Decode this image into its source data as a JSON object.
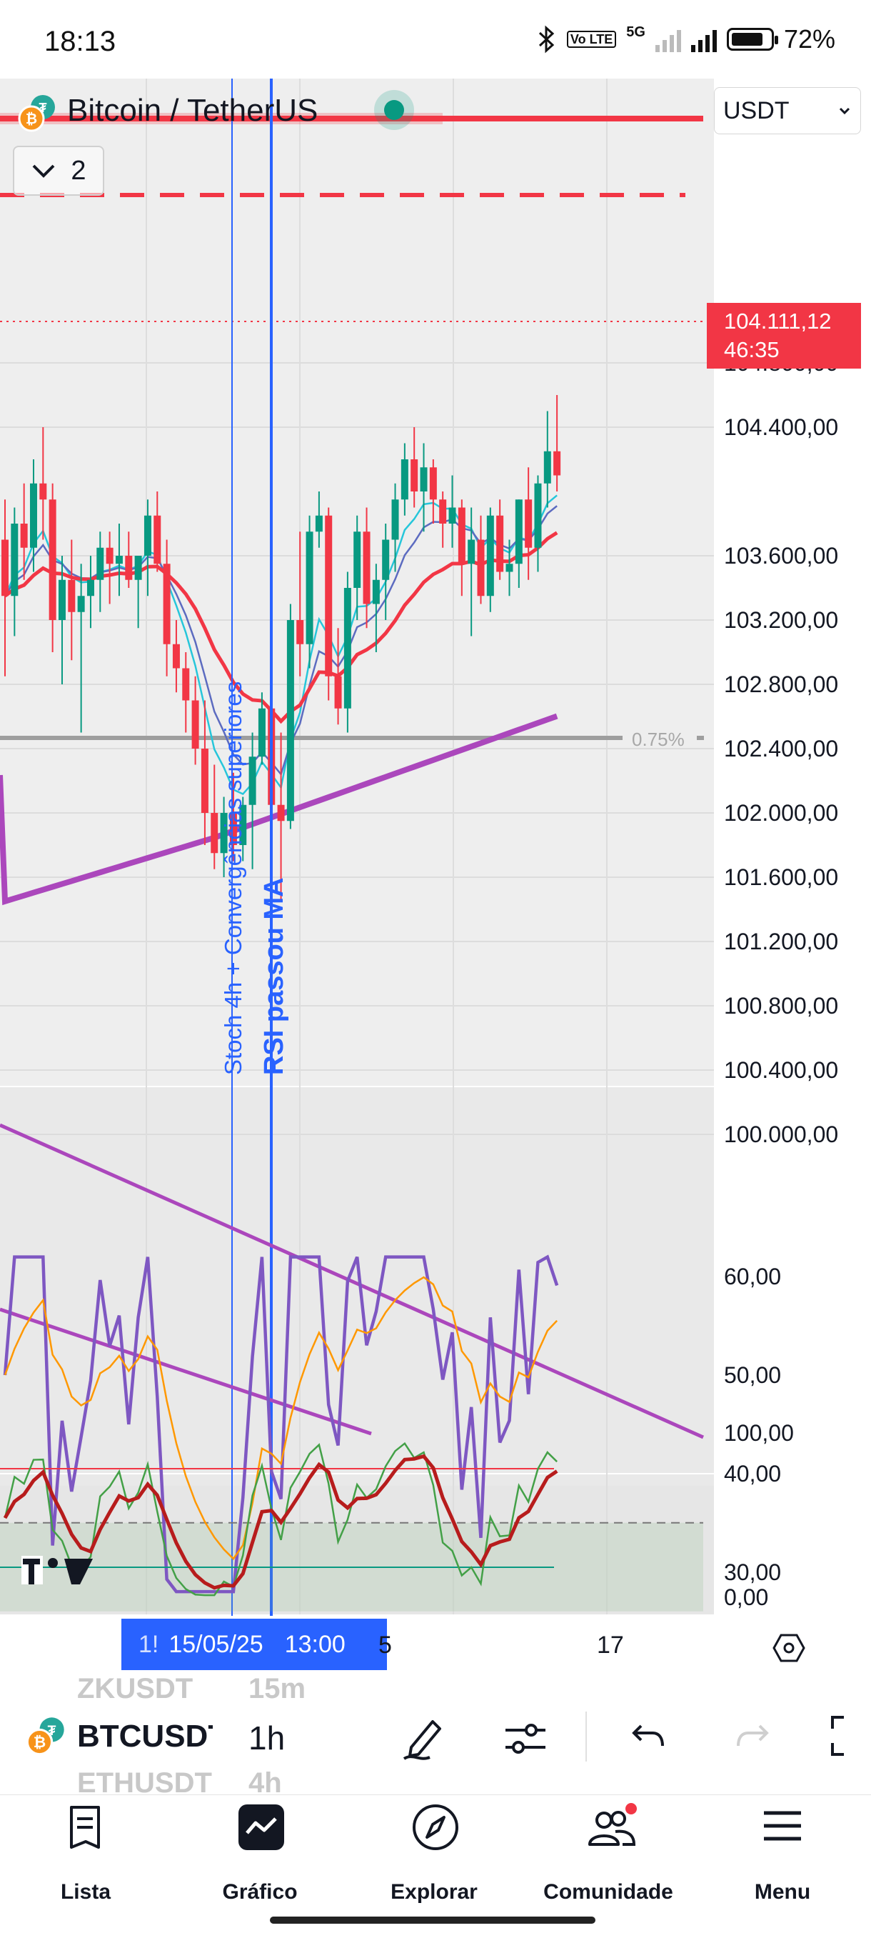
{
  "status_bar": {
    "time": "18:13",
    "battery": "72%",
    "network": "5G",
    "volte": "Vo LTE",
    "icons": [
      "bluetooth-icon",
      "volte-icon",
      "signal-icon",
      "signal-icon",
      "battery-icon"
    ]
  },
  "header": {
    "symbol_title": "Bitcoin / TetherUS",
    "indicators_count": "2",
    "currency": "USDT"
  },
  "chart_data": [
    {
      "type": "candlestick",
      "title": "",
      "price_axis": [
        "104.800,00",
        "104.400,00",
        "103.600,00",
        "103.200,00",
        "102.800,00",
        "102.400,00",
        "102.000,00",
        "101.600,00",
        "101.200,00",
        "100.800,00",
        "100.400,00",
        "100.000,00"
      ],
      "ylim": [
        99900,
        105200
      ],
      "last_price": "104.111,12",
      "countdown": "46:35",
      "percent_marker": "0.75%",
      "annotations": [
        "Stoch 4h + Convergências superiores",
        "RSI passou MA"
      ],
      "candles_ohlc": [
        [
          103700,
          103950,
          102850,
          103350
        ],
        [
          103350,
          103900,
          103100,
          103800
        ],
        [
          103800,
          104050,
          103450,
          103650
        ],
        [
          103650,
          104200,
          103500,
          104050
        ],
        [
          104050,
          104400,
          103700,
          103950
        ],
        [
          103950,
          104050,
          103000,
          103200
        ],
        [
          103200,
          103600,
          102800,
          103450
        ],
        [
          103450,
          103700,
          102950,
          103250
        ],
        [
          103250,
          103550,
          102500,
          103350
        ],
        [
          103350,
          103600,
          103150,
          103450
        ],
        [
          103450,
          103750,
          103250,
          103650
        ],
        [
          103650,
          103750,
          103300,
          103550
        ],
        [
          103550,
          103800,
          103350,
          103600
        ],
        [
          103600,
          103750,
          103400,
          103450
        ],
        [
          103450,
          103600,
          103150,
          103600
        ],
        [
          103600,
          103950,
          103350,
          103850
        ],
        [
          103850,
          104000,
          103500,
          103550
        ],
        [
          103550,
          103700,
          102850,
          103050
        ],
        [
          103050,
          103200,
          102750,
          102900
        ],
        [
          102900,
          103000,
          102500,
          102700
        ],
        [
          102700,
          102850,
          102300,
          102400
        ],
        [
          102400,
          102700,
          101800,
          102000
        ],
        [
          102000,
          102300,
          101650,
          101750
        ],
        [
          101750,
          102100,
          101600,
          102000
        ],
        [
          102000,
          102250,
          101700,
          101800
        ],
        [
          101800,
          102100,
          101700,
          102050
        ],
        [
          102050,
          102500,
          101650,
          102350
        ],
        [
          102350,
          102750,
          102300,
          102650
        ],
        [
          102650,
          102400,
          101750,
          102050
        ],
        [
          102050,
          102500,
          101450,
          101950
        ],
        [
          101950,
          103300,
          101900,
          103200
        ],
        [
          103200,
          103750,
          102850,
          103050
        ],
        [
          103050,
          103850,
          102900,
          103750
        ],
        [
          103750,
          104000,
          103650,
          103850
        ],
        [
          103850,
          103900,
          102700,
          102850
        ],
        [
          102850,
          103150,
          102550,
          102650
        ],
        [
          102650,
          103500,
          102500,
          103400
        ],
        [
          103400,
          103850,
          103200,
          103750
        ],
        [
          103750,
          103900,
          103150,
          103300
        ],
        [
          103300,
          103550,
          103000,
          103450
        ],
        [
          103450,
          103800,
          103200,
          103700
        ],
        [
          103700,
          104050,
          103500,
          103950
        ],
        [
          103950,
          104300,
          103850,
          104200
        ],
        [
          104200,
          104400,
          103900,
          104000
        ],
        [
          104000,
          104300,
          103750,
          104150
        ],
        [
          104150,
          104200,
          103800,
          103950
        ],
        [
          103950,
          104000,
          103650,
          103800
        ],
        [
          103800,
          104100,
          103650,
          103900
        ],
        [
          103900,
          103950,
          103350,
          103550
        ],
        [
          103550,
          103900,
          103100,
          103700
        ],
        [
          103700,
          103850,
          103300,
          103350
        ],
        [
          103350,
          103900,
          103250,
          103850
        ],
        [
          103850,
          103950,
          103450,
          103500
        ],
        [
          103500,
          103700,
          103350,
          103550
        ],
        [
          103550,
          103950,
          103400,
          103950
        ],
        [
          103950,
          104150,
          103450,
          103650
        ],
        [
          103650,
          104100,
          103500,
          104050
        ],
        [
          104050,
          104500,
          103900,
          104250
        ],
        [
          104250,
          104600,
          104000,
          104100
        ]
      ]
    },
    {
      "type": "line",
      "title": "",
      "ylim": [
        26,
        64
      ],
      "y_ticks": [
        "60,00",
        "50,00",
        "40,00",
        "30,00"
      ],
      "oversold_level": 35
    },
    {
      "type": "line",
      "title": "",
      "ylim": [
        0,
        100
      ],
      "y_ticks": [
        "100,00",
        "0,00"
      ]
    }
  ],
  "date_axis": {
    "crosshair_label_prefix": "1!",
    "crosshair_date": "15/05/25",
    "crosshair_time": "13:00",
    "partial_label": "5",
    "label_17": "17"
  },
  "toolbar": {
    "symbol_above": "ZKUSDT",
    "symbol_current": "BTCUSDT",
    "symbol_below": "ETHUSDT",
    "tf_above": "15m",
    "tf_current": "1h",
    "tf_below": "4h",
    "icons": [
      "pen-icon",
      "sliders-icon",
      "undo-icon",
      "redo-icon",
      "fullscreen-icon"
    ]
  },
  "nav": {
    "items": [
      {
        "label": "Lista",
        "icon": "watchlist-icon"
      },
      {
        "label": "Gráfico",
        "icon": "chart-icon"
      },
      {
        "label": "Explorar",
        "icon": "compass-icon"
      },
      {
        "label": "Comunidade",
        "icon": "community-icon"
      },
      {
        "label": "Menu",
        "icon": "menu-icon"
      }
    ]
  },
  "colors": {
    "up": "#089981",
    "down": "#f23645",
    "accent": "#2962ff",
    "ma_purple": "#ab47bc",
    "rsi": "#7e57c2",
    "rsi_ma": "#ff9800"
  }
}
